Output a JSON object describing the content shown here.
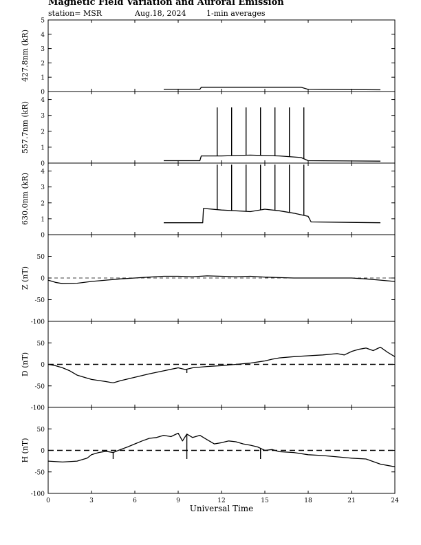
{
  "header": {
    "title": "Magnetic Field Variation and Auroral Emission",
    "station": "station= MSR",
    "date": "Aug.18, 2024",
    "averaging": "1-min averages"
  },
  "chart_data": [
    {
      "type": "line",
      "panel": "427.8nm",
      "ylabel": "427.8nm (kR)",
      "ylim": [
        0,
        5
      ],
      "yticks": [
        "0",
        "1",
        "2",
        "3",
        "4",
        "5"
      ],
      "grid": false,
      "series": [
        {
          "x": [
            8.0,
            10.5,
            10.6,
            12,
            14,
            16,
            17.5,
            18,
            23
          ],
          "y": [
            0.15,
            0.15,
            0.3,
            0.3,
            0.3,
            0.3,
            0.3,
            0.15,
            0.12
          ]
        }
      ]
    },
    {
      "type": "line",
      "panel": "557.7nm",
      "ylabel": "557.7nm (kR)",
      "ylim": [
        0,
        4.5
      ],
      "yticks": [
        "0",
        "1",
        "2",
        "3",
        "4"
      ],
      "grid": false,
      "series": [
        {
          "x": [
            8.0,
            10.5,
            10.6,
            12,
            14,
            16,
            17.5,
            18,
            23
          ],
          "y": [
            0.15,
            0.15,
            0.45,
            0.45,
            0.5,
            0.45,
            0.35,
            0.15,
            0.12
          ]
        }
      ],
      "spikes": {
        "x": [
          11.7,
          12.7,
          13.7,
          14.7,
          15.7,
          16.7,
          17.7
        ],
        "y": 3.5
      }
    },
    {
      "type": "line",
      "panel": "630.0nm",
      "ylabel": "630.0nm (kR)",
      "ylim": [
        0,
        4.5
      ],
      "yticks": [
        "0",
        "1",
        "2",
        "3",
        "4"
      ],
      "grid": false,
      "series": [
        {
          "x": [
            8.0,
            10.7,
            10.75,
            12,
            14,
            15,
            16,
            17,
            18,
            18.2,
            23
          ],
          "y": [
            0.75,
            0.75,
            1.65,
            1.55,
            1.45,
            1.6,
            1.5,
            1.35,
            1.15,
            0.8,
            0.75
          ]
        }
      ],
      "spikes": {
        "x": [
          11.7,
          12.7,
          13.7,
          14.7,
          15.7,
          16.7,
          17.7
        ],
        "y": 4.4
      }
    },
    {
      "type": "line",
      "panel": "Z",
      "ylabel": "Z (nT)",
      "ylim": [
        -100,
        100
      ],
      "yticks": [
        "-100",
        "-50",
        "0",
        "50"
      ],
      "zero_line": "dashed",
      "grid": false,
      "series": [
        {
          "x": [
            0,
            0.5,
            1,
            2,
            3,
            4,
            5,
            6,
            7,
            8,
            9,
            10,
            11,
            12,
            13,
            14,
            15,
            16,
            17,
            18,
            19,
            20,
            21,
            22,
            23,
            24
          ],
          "y": [
            -5,
            -10,
            -13,
            -12,
            -8,
            -5,
            -2,
            0,
            2,
            4,
            4,
            3,
            5,
            4,
            3,
            4,
            2,
            1,
            0,
            0,
            0,
            0,
            0,
            -2,
            -5,
            -8
          ]
        }
      ]
    },
    {
      "type": "line",
      "panel": "D",
      "ylabel": "D (nT)",
      "ylim": [
        -100,
        100
      ],
      "yticks": [
        "-100",
        "-50",
        "0",
        "50"
      ],
      "zero_line": "dashed",
      "grid": false,
      "series": [
        {
          "x": [
            0,
            0.5,
            1,
            1.5,
            2,
            3,
            4,
            4.5,
            5,
            6,
            7,
            8,
            9,
            9.5,
            10,
            11,
            12,
            13,
            14,
            15,
            15.5,
            16,
            17,
            18,
            19,
            20,
            20.5,
            21,
            21.5,
            22,
            22.5,
            23,
            23.5,
            24
          ],
          "y": [
            0,
            -3,
            -8,
            -15,
            -25,
            -35,
            -40,
            -43,
            -38,
            -30,
            -22,
            -15,
            -8,
            -12,
            -8,
            -5,
            -3,
            0,
            3,
            8,
            12,
            15,
            18,
            20,
            22,
            25,
            22,
            30,
            35,
            38,
            32,
            40,
            28,
            18
          ]
        }
      ],
      "spikes": {
        "x": [
          9.6
        ],
        "y": -20
      }
    },
    {
      "type": "line",
      "panel": "H",
      "ylabel": "H (nT)",
      "ylim": [
        -100,
        100
      ],
      "yticks": [
        "-100",
        "-50",
        "0",
        "50"
      ],
      "zero_line": "dashed",
      "grid": false,
      "series": [
        {
          "x": [
            0,
            1,
            2,
            2.7,
            3,
            3.5,
            4,
            4.5,
            5,
            5.5,
            6,
            6.5,
            7,
            7.5,
            8,
            8.5,
            9,
            9.3,
            9.6,
            10,
            10.5,
            11,
            11.5,
            12,
            12.5,
            13,
            13.5,
            14,
            14.5,
            15,
            15.5,
            16,
            17,
            18,
            19,
            20,
            21,
            22,
            23,
            24
          ],
          "y": [
            -25,
            -27,
            -25,
            -18,
            -10,
            -5,
            -2,
            -5,
            2,
            8,
            15,
            22,
            28,
            30,
            35,
            32,
            40,
            22,
            38,
            30,
            35,
            25,
            15,
            18,
            22,
            20,
            15,
            12,
            8,
            0,
            2,
            -3,
            -5,
            -10,
            -12,
            -15,
            -18,
            -20,
            -32,
            -38
          ]
        }
      ],
      "spikes": {
        "x": [
          4.5,
          9.6,
          14.7
        ],
        "y": -20
      }
    }
  ],
  "x_axis": {
    "label": "Universal Time",
    "ticks": [
      "0",
      "3",
      "6",
      "9",
      "12",
      "15",
      "18",
      "21",
      "24"
    ],
    "xlim": [
      0,
      24
    ]
  },
  "colors": {
    "line": "#000000",
    "background": "#ffffff"
  }
}
